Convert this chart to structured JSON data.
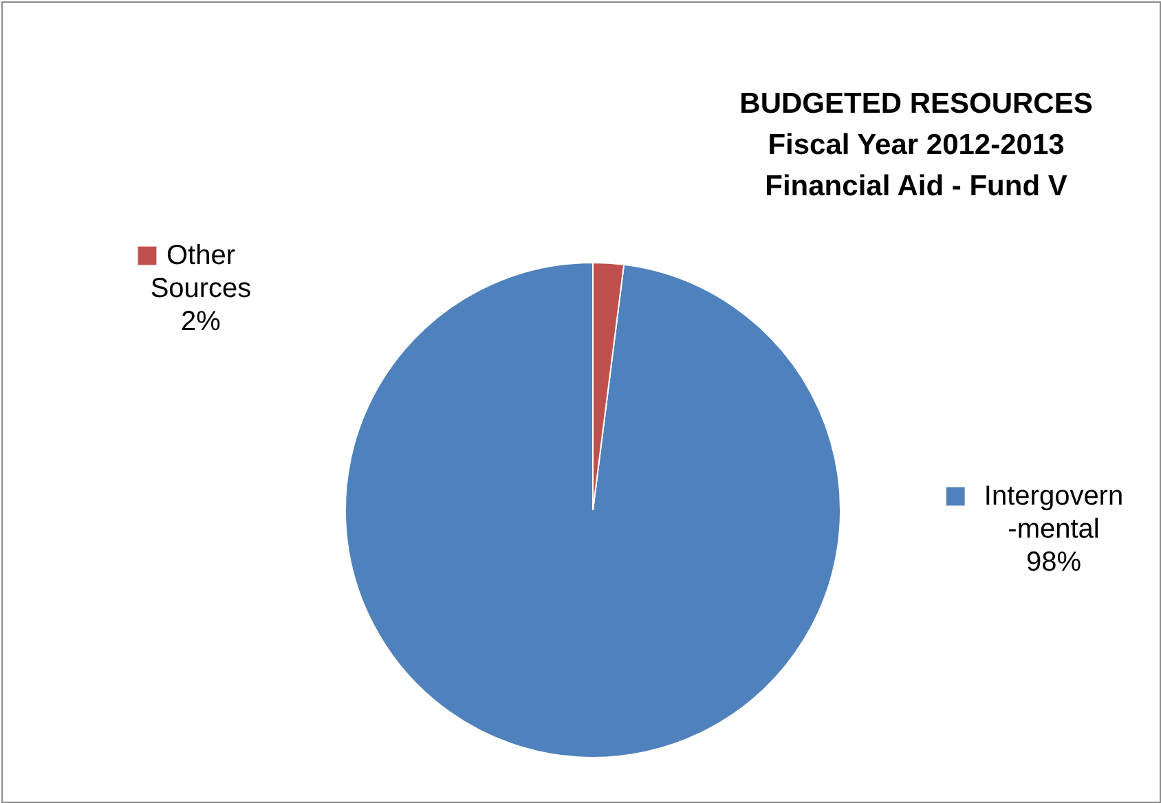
{
  "chart_data": {
    "type": "pie",
    "title": "BUDGETED RESOURCES\nFiscal Year 2012-2013\nFinancial Aid - Fund V",
    "categories": [
      "Intergovern -mental",
      "Other Sources"
    ],
    "values": [
      98,
      2
    ],
    "colors": [
      "#4f81bd",
      "#c0504d"
    ],
    "value_labels": [
      "98%",
      "2%"
    ],
    "legend": "top"
  }
}
